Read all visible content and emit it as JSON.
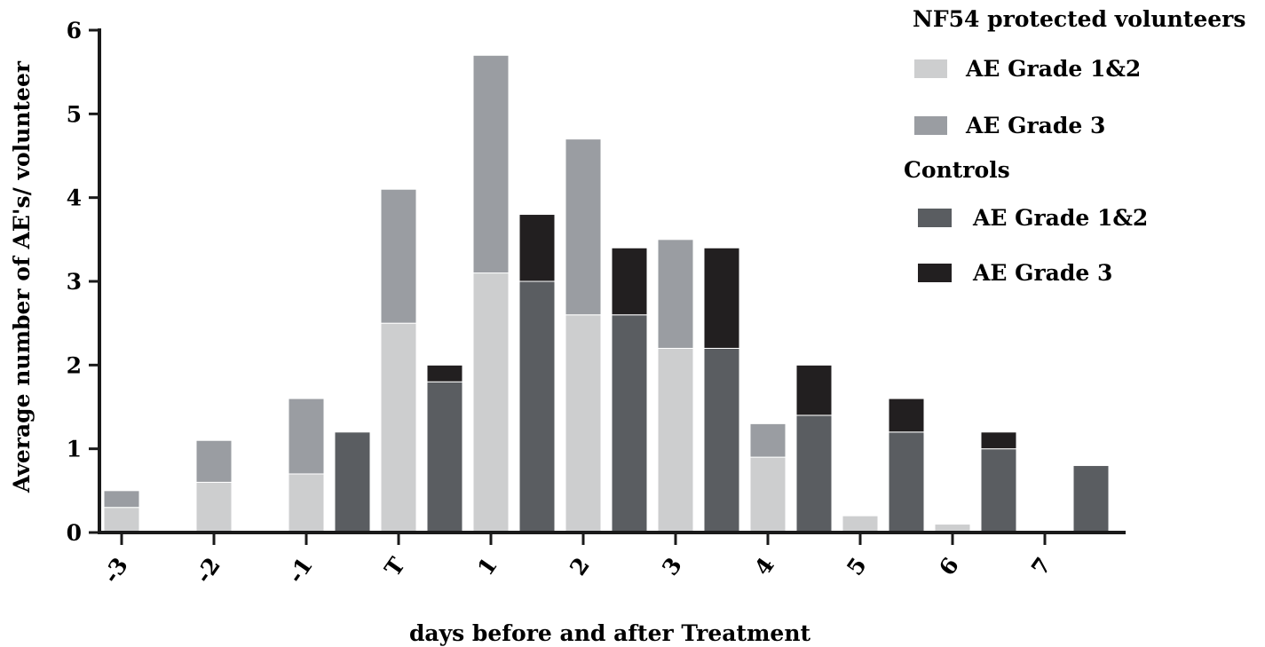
{
  "chart_data": {
    "type": "bar",
    "stacked": true,
    "ylabel": "Average number of AE's/ volunteer",
    "xlabel": "days before and after Treatment",
    "ylim": [
      0,
      6
    ],
    "yticks": [
      "0",
      "1",
      "2",
      "3",
      "4",
      "5",
      "6"
    ],
    "categories": [
      "-3",
      "-2",
      "-1",
      "T",
      "1",
      "2",
      "3",
      "4",
      "5",
      "6",
      "7"
    ],
    "groups": [
      {
        "name": "NF54 protected volunteers",
        "series": [
          {
            "name": "AE Grade 1&2",
            "color": "#cdcecf",
            "values": [
              0.3,
              0.6,
              0.7,
              2.5,
              3.1,
              2.6,
              2.2,
              0.9,
              0.2,
              0.1,
              0
            ]
          },
          {
            "name": "AE Grade 3",
            "color": "#9a9da2",
            "values": [
              0.2,
              0.5,
              0.9,
              1.6,
              2.6,
              2.1,
              1.3,
              0.4,
              0,
              0,
              0
            ]
          }
        ]
      },
      {
        "name": "Controls",
        "series": [
          {
            "name": "AE Grade 1&2",
            "color": "#5a5d61",
            "values": [
              0,
              0,
              1.2,
              1.8,
              3.0,
              2.6,
              2.2,
              1.4,
              1.2,
              1.0,
              0.8
            ]
          },
          {
            "name": "AE Grade 3",
            "color": "#221f20",
            "values": [
              0,
              0,
              0,
              0.2,
              0.8,
              0.8,
              1.2,
              0.6,
              0.4,
              0.2,
              0
            ]
          }
        ]
      }
    ],
    "legend_position": "top-right"
  }
}
